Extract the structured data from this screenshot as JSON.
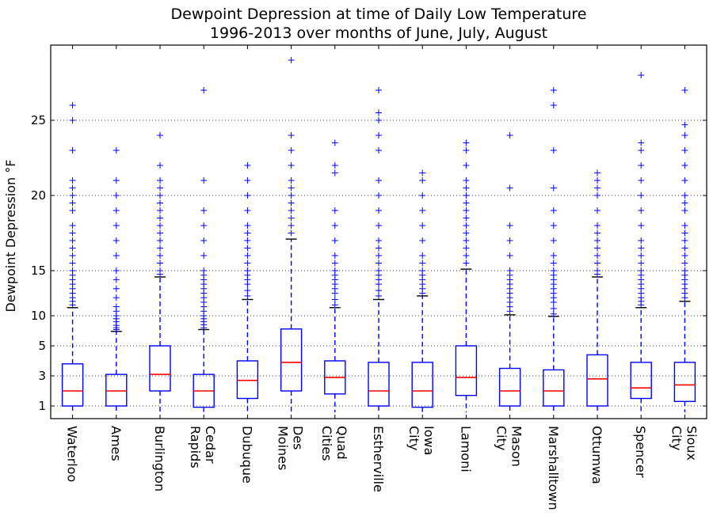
{
  "chart_data": {
    "type": "boxplot",
    "title_line1": "Dewpoint Depression at time of Daily Low Temperature",
    "title_line2": "1996-2013 over months of June, July, August",
    "ylabel": "Dewpoint Depression °F",
    "xlabel": "",
    "grid": "horizontal dotted",
    "y_ticks": [
      1,
      3,
      5,
      10,
      15,
      20,
      25
    ],
    "y_ticks_labels": [
      "1",
      "3",
      "5",
      "10",
      "15",
      "20",
      "25"
    ],
    "categories": [
      {
        "line1": "Waterloo",
        "line2": ""
      },
      {
        "line1": "Ames",
        "line2": ""
      },
      {
        "line1": "Burlington",
        "line2": ""
      },
      {
        "line1": "Cedar",
        "line2": "Rapids"
      },
      {
        "line1": "Dubuque",
        "line2": ""
      },
      {
        "line1": "Des",
        "line2": "Moines"
      },
      {
        "line1": "Quad",
        "line2": "Cities"
      },
      {
        "line1": "Estherville",
        "line2": ""
      },
      {
        "line1": "Iowa",
        "line2": "City"
      },
      {
        "line1": "Lamoni",
        "line2": ""
      },
      {
        "line1": "Mason",
        "line2": "City"
      },
      {
        "line1": "Marshalltown",
        "line2": ""
      },
      {
        "line1": "Ottumwa",
        "line2": ""
      },
      {
        "line1": "Spencer",
        "line2": ""
      },
      {
        "line1": "Sioux",
        "line2": "City"
      }
    ],
    "boxes": [
      {
        "q1": 1.0,
        "median": 2.0,
        "q3": 3.8,
        "whisker_low": 0.0,
        "whisker_high": 10.9,
        "outliers": [
          11.2,
          11.6,
          12.0,
          12.5,
          13.0,
          13.5,
          14.0,
          14.5,
          15.0,
          15.5,
          16.0,
          16.5,
          17.0,
          17.5,
          18.0,
          19.0,
          19.5,
          20.0,
          20.5,
          21.0,
          23.0,
          25.0,
          26.0
        ]
      },
      {
        "q1": 1.0,
        "median": 2.0,
        "q3": 3.1,
        "whisker_low": 0.0,
        "whisker_high": 7.4,
        "outliers": [
          7.7,
          8.0,
          8.4,
          9.0,
          9.5,
          10.0,
          10.5,
          11.0,
          12.0,
          13.0,
          14.0,
          15.0,
          16.0,
          17.0,
          18.0,
          19.0,
          20.0,
          21.0,
          23.0
        ]
      },
      {
        "q1": 2.0,
        "median": 3.1,
        "q3": 5.0,
        "whisker_low": 0.0,
        "whisker_high": 14.3,
        "outliers": [
          14.6,
          15.0,
          15.5,
          16.0,
          16.5,
          17.0,
          17.5,
          18.0,
          18.5,
          19.0,
          19.5,
          20.0,
          20.5,
          21.0,
          22.0,
          24.0
        ]
      },
      {
        "q1": 0.8,
        "median": 2.0,
        "q3": 3.1,
        "whisker_low": 0.0,
        "whisker_high": 7.7,
        "outliers": [
          8.0,
          8.5,
          9.0,
          9.5,
          10.0,
          10.5,
          11.0,
          11.5,
          12.0,
          12.5,
          13.0,
          13.5,
          14.0,
          14.5,
          15.0,
          16.0,
          17.0,
          18.0,
          19.0,
          21.0,
          27.0
        ]
      },
      {
        "q1": 1.5,
        "median": 2.7,
        "q3": 4.0,
        "whisker_low": 0.0,
        "whisker_high": 11.8,
        "outliers": [
          12.2,
          12.8,
          13.5,
          14.0,
          14.5,
          15.0,
          15.5,
          16.0,
          16.5,
          17.0,
          17.5,
          18.0,
          19.0,
          20.0,
          21.0,
          22.0
        ]
      },
      {
        "q1": 2.0,
        "median": 3.9,
        "q3": 7.8,
        "whisker_low": 0.0,
        "whisker_high": 17.1,
        "outliers": [
          17.5,
          18.0,
          18.5,
          19.0,
          19.5,
          20.0,
          20.5,
          21.0,
          22.0,
          23.0,
          24.0,
          29.0
        ]
      },
      {
        "q1": 1.8,
        "median": 2.9,
        "q3": 4.0,
        "whisker_low": 0.0,
        "whisker_high": 10.9,
        "outliers": [
          11.2,
          11.8,
          12.5,
          13.0,
          13.5,
          14.0,
          14.5,
          15.0,
          15.5,
          16.0,
          17.0,
          18.0,
          19.0,
          21.5,
          22.0,
          23.5
        ]
      },
      {
        "q1": 1.0,
        "median": 2.0,
        "q3": 3.9,
        "whisker_low": 0.0,
        "whisker_high": 11.8,
        "outliers": [
          12.2,
          12.8,
          13.5,
          14.0,
          14.5,
          15.0,
          15.5,
          16.0,
          16.5,
          17.0,
          18.0,
          19.0,
          20.0,
          21.0,
          23.0,
          24.0,
          25.0,
          25.5,
          27.0
        ]
      },
      {
        "q1": 0.8,
        "median": 2.0,
        "q3": 3.9,
        "whisker_low": 0.0,
        "whisker_high": 12.2,
        "outliers": [
          12.5,
          13.0,
          13.5,
          14.0,
          14.5,
          15.0,
          15.5,
          16.0,
          17.0,
          18.0,
          19.0,
          20.0,
          21.0,
          21.5
        ]
      },
      {
        "q1": 1.7,
        "median": 2.9,
        "q3": 5.0,
        "whisker_low": 0.0,
        "whisker_high": 15.1,
        "outliers": [
          15.5,
          16.0,
          16.5,
          17.0,
          17.5,
          18.0,
          18.5,
          19.0,
          19.5,
          20.0,
          20.5,
          21.0,
          22.0,
          23.0,
          23.5
        ]
      },
      {
        "q1": 1.0,
        "median": 2.0,
        "q3": 3.5,
        "whisker_low": 0.0,
        "whisker_high": 10.1,
        "outliers": [
          10.5,
          11.0,
          11.5,
          12.0,
          12.5,
          13.0,
          13.5,
          14.0,
          14.5,
          15.0,
          16.0,
          17.0,
          18.0,
          20.5,
          24.0
        ]
      },
      {
        "q1": 1.0,
        "median": 2.0,
        "q3": 3.4,
        "whisker_low": 0.0,
        "whisker_high": 9.9,
        "outliers": [
          10.2,
          10.8,
          11.5,
          12.0,
          12.5,
          13.0,
          13.5,
          14.0,
          14.5,
          15.0,
          15.5,
          16.0,
          17.0,
          18.0,
          19.0,
          20.5,
          23.0,
          26.0,
          27.0
        ]
      },
      {
        "q1": 1.0,
        "median": 2.8,
        "q3": 4.4,
        "whisker_low": 0.0,
        "whisker_high": 14.3,
        "outliers": [
          14.6,
          15.0,
          15.5,
          16.0,
          16.5,
          17.0,
          17.5,
          18.0,
          19.0,
          20.0,
          20.5,
          21.0,
          21.5
        ]
      },
      {
        "q1": 1.5,
        "median": 2.2,
        "q3": 3.9,
        "whisker_low": 0.0,
        "whisker_high": 10.9,
        "outliers": [
          11.2,
          11.6,
          12.0,
          12.5,
          13.0,
          13.5,
          14.0,
          14.5,
          15.0,
          15.5,
          16.0,
          16.5,
          17.0,
          18.0,
          19.0,
          20.0,
          21.0,
          22.0,
          23.0,
          23.5,
          28.0
        ]
      },
      {
        "q1": 1.3,
        "median": 2.4,
        "q3": 3.9,
        "whisker_low": 0.0,
        "whisker_high": 11.6,
        "outliers": [
          12.0,
          12.5,
          13.0,
          13.5,
          14.0,
          14.5,
          15.0,
          15.5,
          16.0,
          16.5,
          17.0,
          17.5,
          18.0,
          19.0,
          19.5,
          20.0,
          21.0,
          22.0,
          23.0,
          24.0,
          24.7,
          27.0
        ]
      }
    ],
    "colors": {
      "box": "#0000ff",
      "median": "#ff0000",
      "cap": "#000000",
      "flier": "#0000ff",
      "grid": "#000000"
    }
  }
}
